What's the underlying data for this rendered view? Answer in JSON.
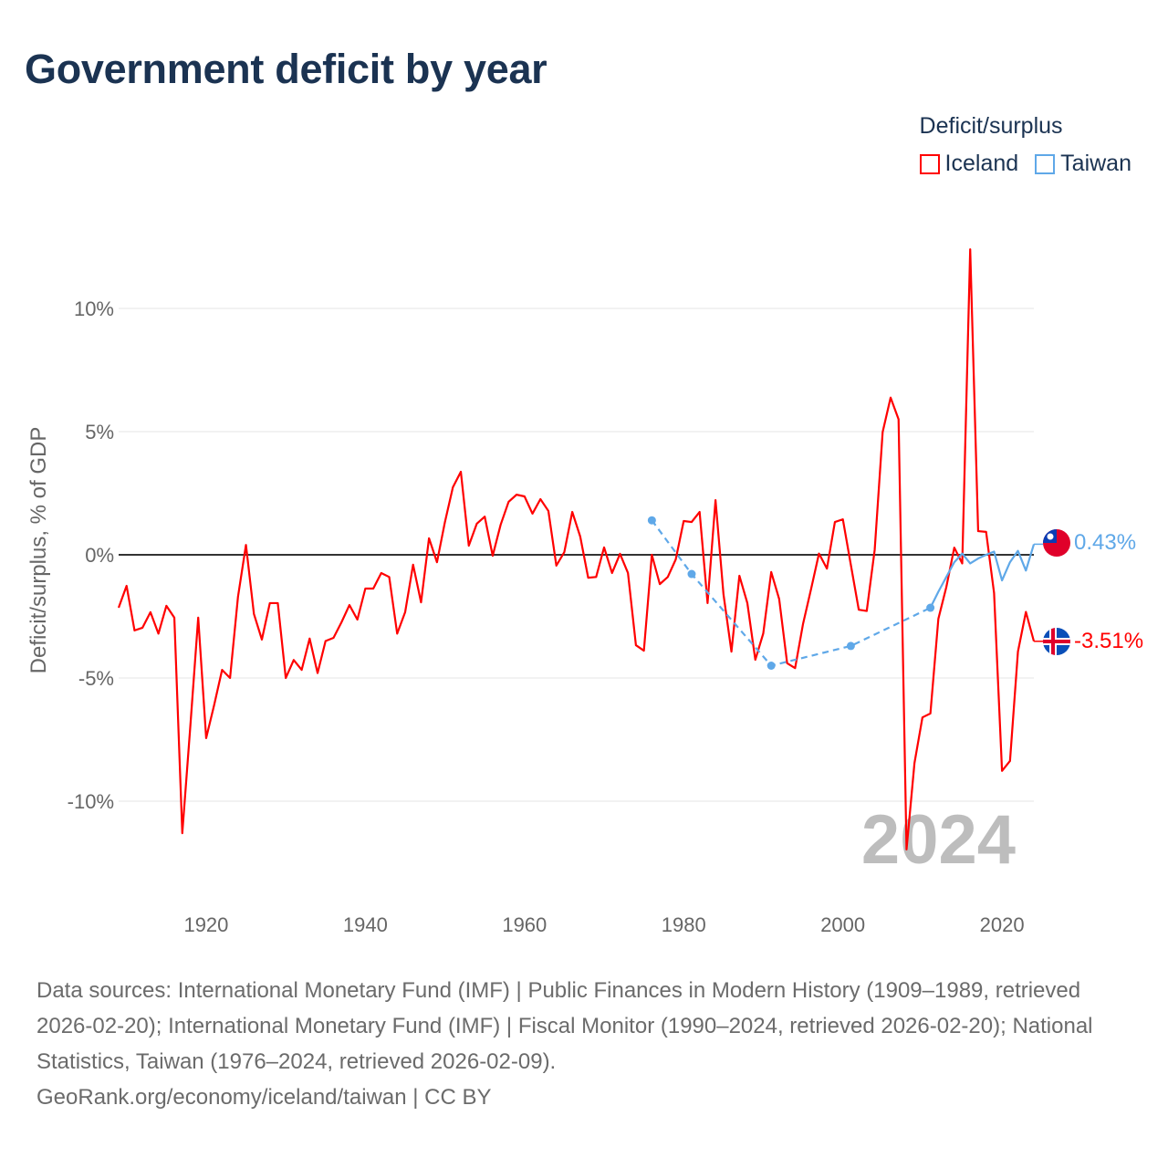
{
  "title": "Government deficit by year",
  "legend": {
    "title": "Deficit/surplus",
    "items": [
      {
        "name": "Iceland",
        "color": "#ff0000"
      },
      {
        "name": "Taiwan",
        "color": "#5fa8e8"
      }
    ]
  },
  "watermark_year": "2024",
  "end_labels": {
    "taiwan": "0.43%",
    "iceland": "-3.51%"
  },
  "footer": {
    "sources": "Data sources: International Monetary Fund (IMF) | Public Finances in Modern History (1909–1989, retrieved 2026-02-20); International Monetary Fund (IMF) | Fiscal Monitor (1990–2024, retrieved 2026-02-20); National Statistics, Taiwan (1976–2024, retrieved 2026-02-09).",
    "credit": "GeoRank.org/economy/iceland/taiwan | CC BY"
  },
  "chart_data": {
    "type": "line",
    "title": "Government deficit by year",
    "ylabel": "Deficit/surplus, % of GDP",
    "xlabel": "",
    "xlim": [
      1909,
      2024
    ],
    "ylim": [
      -13,
      12.5
    ],
    "x_ticks": [
      1920,
      1940,
      1960,
      1980,
      2000,
      2020
    ],
    "y_ticks": [
      {
        "v": 10,
        "label": "10%"
      },
      {
        "v": 5,
        "label": "5%"
      },
      {
        "v": 0,
        "label": "0%"
      },
      {
        "v": -5,
        "label": "-5%"
      },
      {
        "v": -10,
        "label": "-10%"
      }
    ],
    "grid": true,
    "legend_position": "top-right",
    "series": [
      {
        "name": "Iceland",
        "color": "#ff0000",
        "start_year": 1909,
        "values": [
          -2.15,
          -1.26,
          -3.07,
          -2.96,
          -2.33,
          -3.2,
          -2.07,
          -2.55,
          -11.3,
          -7.0,
          -2.55,
          -7.44,
          -6.1,
          -4.67,
          -5.0,
          -1.7,
          0.4,
          -2.4,
          -3.44,
          -1.96,
          -1.96,
          -5.0,
          -4.27,
          -4.67,
          -3.4,
          -4.8,
          -3.5,
          -3.37,
          -2.74,
          -2.04,
          -2.63,
          -1.37,
          -1.37,
          -0.74,
          -0.9,
          -3.2,
          -2.33,
          -0.4,
          -1.93,
          0.67,
          -0.3,
          1.33,
          2.74,
          3.37,
          0.37,
          1.26,
          1.55,
          -0.04,
          1.22,
          2.15,
          2.44,
          2.37,
          1.67,
          2.26,
          1.78,
          -0.44,
          0.11,
          1.74,
          0.74,
          -0.93,
          -0.9,
          0.3,
          -0.74,
          0.04,
          -0.74,
          -3.67,
          -3.89,
          0.0,
          -1.19,
          -0.9,
          -0.19,
          1.37,
          1.33,
          1.74,
          -1.96,
          2.22,
          -1.6,
          -3.93,
          -0.85,
          -1.96,
          -4.26,
          -3.19,
          -0.7,
          -1.8,
          -4.4,
          -4.6,
          -2.8,
          -1.4,
          0.05,
          -0.56,
          1.33,
          1.44,
          -0.4,
          -2.23,
          -2.28,
          0.2,
          4.98,
          6.38,
          5.5,
          -11.96,
          -8.45,
          -6.6,
          -6.44,
          -2.6,
          -1.31,
          0.29,
          -0.35,
          12.4,
          0.96,
          0.93,
          -1.55,
          -8.77,
          -8.37,
          -3.93,
          -2.32,
          -3.51
        ]
      },
      {
        "name": "Taiwan",
        "color": "#5fa8e8",
        "points": [
          [
            1976,
            1.4
          ],
          [
            1981,
            -0.78
          ],
          [
            1991,
            -4.5
          ],
          [
            2001,
            -3.7
          ],
          [
            2011,
            -2.15
          ],
          [
            2012,
            -1.5
          ],
          [
            2013,
            -0.9
          ],
          [
            2014,
            -0.3
          ],
          [
            2015,
            0.05
          ],
          [
            2016,
            -0.35
          ],
          [
            2017,
            -0.15
          ],
          [
            2018,
            0.0
          ],
          [
            2019,
            0.13
          ],
          [
            2020,
            -1.04
          ],
          [
            2021,
            -0.3
          ],
          [
            2022,
            0.16
          ],
          [
            2023,
            -0.64
          ],
          [
            2024,
            0.43
          ]
        ],
        "sparse_until": 2011
      }
    ]
  }
}
